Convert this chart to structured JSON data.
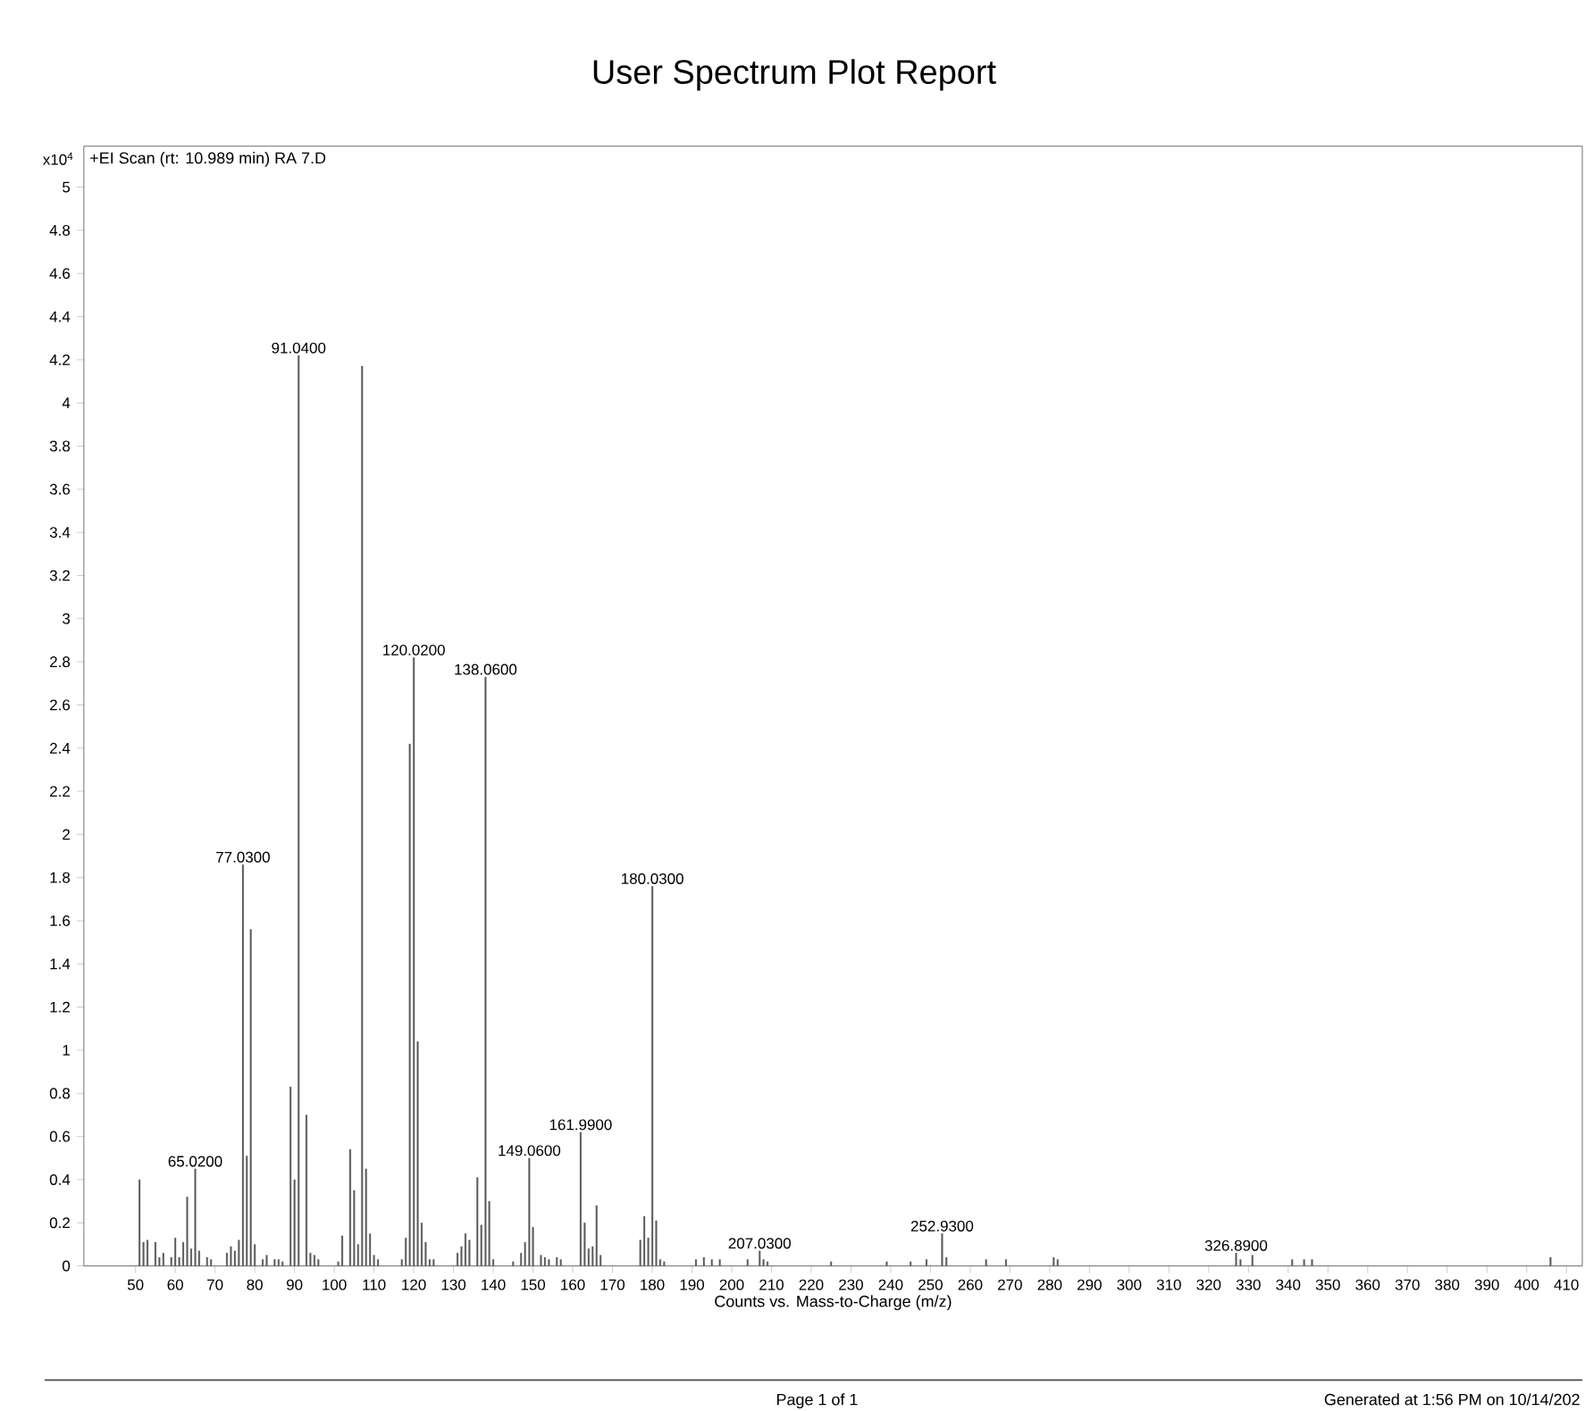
{
  "chart_data": {
    "type": "bar",
    "title": "User Spectrum Plot Report",
    "xlabel": "Counts vs. Mass-to-Charge (m/z)",
    "ylabel": "x10$^{4}$",
    "color": "#5a5a5a",
    "x": [
      51,
      52,
      53,
      55,
      56,
      57,
      59,
      60,
      61,
      62,
      63,
      64,
      65.02,
      66,
      68,
      69,
      73,
      74,
      75,
      76,
      77.03,
      78,
      79,
      80,
      82,
      83,
      85,
      86,
      87,
      89,
      90,
      91.04,
      93,
      94,
      95,
      96,
      101,
      102,
      104,
      105,
      106,
      107,
      108,
      109,
      110,
      111,
      117,
      118,
      119,
      120.02,
      121,
      122,
      123,
      124,
      125,
      131,
      132,
      133,
      134,
      136,
      137,
      138.06,
      139,
      140,
      145,
      147,
      148,
      149.06,
      150,
      152,
      153,
      154,
      156,
      157,
      161.99,
      163,
      164,
      165,
      166,
      167,
      177,
      178,
      179,
      180.03,
      181,
      182,
      183,
      191,
      193,
      195,
      197,
      204,
      207.03,
      208,
      209,
      225,
      239,
      245,
      249,
      252.93,
      254,
      264,
      269,
      281,
      282,
      326.89,
      328,
      331,
      341,
      344,
      346,
      406
    ],
    "values": [
      0.4,
      0.11,
      0.12,
      0.11,
      0.04,
      0.06,
      0.04,
      0.13,
      0.04,
      0.11,
      0.32,
      0.08,
      0.45,
      0.07,
      0.04,
      0.03,
      0.06,
      0.09,
      0.07,
      0.12,
      1.86,
      0.51,
      1.56,
      0.1,
      0.03,
      0.05,
      0.03,
      0.03,
      0.02,
      0.83,
      0.4,
      4.22,
      0.7,
      0.06,
      0.05,
      0.03,
      0.02,
      0.14,
      0.54,
      0.35,
      0.1,
      4.17,
      0.45,
      0.15,
      0.05,
      0.03,
      0.03,
      0.13,
      2.42,
      2.82,
      1.04,
      0.2,
      0.11,
      0.03,
      0.03,
      0.06,
      0.09,
      0.15,
      0.12,
      0.41,
      0.19,
      2.73,
      0.3,
      0.03,
      0.02,
      0.06,
      0.11,
      0.5,
      0.18,
      0.05,
      0.04,
      0.03,
      0.04,
      0.03,
      0.62,
      0.2,
      0.08,
      0.09,
      0.28,
      0.05,
      0.12,
      0.23,
      0.13,
      1.76,
      0.21,
      0.03,
      0.02,
      0.03,
      0.04,
      0.03,
      0.03,
      0.03,
      0.07,
      0.03,
      0.02,
      0.02,
      0.02,
      0.02,
      0.03,
      0.15,
      0.04,
      0.03,
      0.03,
      0.04,
      0.03,
      0.06,
      0.03,
      0.05,
      0.03,
      0.03,
      0.03,
      0.04
    ],
    "xlim": [
      37,
      414
    ],
    "ylim": [
      0,
      5.19
    ],
    "xticks": [
      50,
      60,
      70,
      80,
      90,
      100,
      110,
      120,
      130,
      140,
      150,
      160,
      170,
      180,
      190,
      200,
      210,
      220,
      230,
      240,
      250,
      260,
      270,
      280,
      290,
      300,
      310,
      320,
      330,
      340,
      350,
      360,
      370,
      380,
      390,
      400,
      410
    ],
    "yticks": [
      0,
      0.2,
      0.4,
      0.6,
      0.8,
      1,
      1.2,
      1.4,
      1.6,
      1.8,
      2,
      2.2,
      2.4,
      2.6,
      2.8,
      3,
      3.2,
      3.4,
      3.6,
      3.8,
      4,
      4.2,
      4.4,
      4.6,
      4.8,
      5
    ],
    "annotations": [
      "+EI Scan (rt: 10.989 min) RA 7.D",
      "Page 1 of 1",
      "Generated at 1:56 PM on 10/14/202",
      {
        "text": "65.0200",
        "x": 65.02,
        "y": 0.45
      },
      {
        "text": "77.0300",
        "x": 77.03,
        "y": 1.86
      },
      {
        "text": "91.0400",
        "x": 91.04,
        "y": 4.22
      },
      {
        "text": "120.0200",
        "x": 120.02,
        "y": 2.82
      },
      {
        "text": "138.0600",
        "x": 138.06,
        "y": 2.73
      },
      {
        "text": "149.0600",
        "x": 149.06,
        "y": 0.5
      },
      {
        "text": "161.9900",
        "x": 161.99,
        "y": 0.62
      },
      {
        "text": "180.0300",
        "x": 180.03,
        "y": 1.76
      },
      {
        "text": "207.0300",
        "x": 207.03,
        "y": 0.07
      },
      {
        "text": "252.9300",
        "x": 252.93,
        "y": 0.15
      },
      {
        "text": "326.8900",
        "x": 326.89,
        "y": 0.06
      }
    ]
  }
}
